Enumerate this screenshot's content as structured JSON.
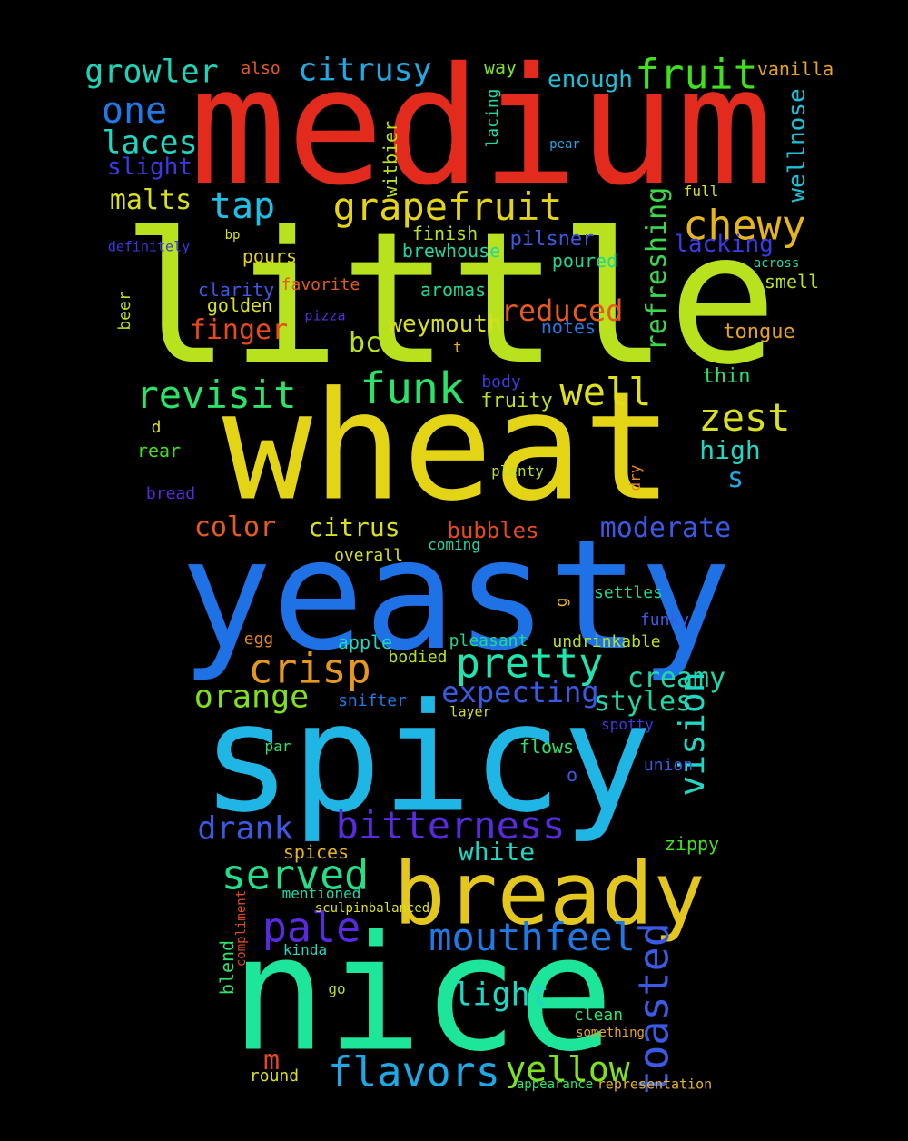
{
  "words": [
    {
      "text": "medium",
      "color": "#e22b1c"
    },
    {
      "text": "little",
      "color": "#b8e11e"
    },
    {
      "text": "wheat",
      "color": "#e3d416"
    },
    {
      "text": "yeasty",
      "color": "#1e72e6"
    },
    {
      "text": "spicy",
      "color": "#1fb6e6"
    },
    {
      "text": "nice",
      "color": "#1de69a"
    },
    {
      "text": "bready",
      "color": "#e3c61e"
    },
    {
      "text": "grapefruit",
      "color": "#e3d416"
    },
    {
      "text": "fruit",
      "color": "#41e01e"
    },
    {
      "text": "chewy",
      "color": "#e5b51c"
    },
    {
      "text": "funk",
      "color": "#2ce36a"
    },
    {
      "text": "revisit",
      "color": "#2ce36a"
    },
    {
      "text": "well",
      "color": "#dde01a"
    },
    {
      "text": "crisp",
      "color": "#e6981e"
    },
    {
      "text": "pretty",
      "color": "#1de6b0"
    },
    {
      "text": "bitterness",
      "color": "#5a2ae0"
    },
    {
      "text": "served",
      "color": "#22e08a"
    },
    {
      "text": "mouthfeel",
      "color": "#1e7ae6"
    },
    {
      "text": "flavors",
      "color": "#1ea8e6"
    },
    {
      "text": "yellow",
      "color": "#7fe01e"
    },
    {
      "text": "pale",
      "color": "#5a2ae0"
    },
    {
      "text": "growler",
      "color": "#1ed3b8"
    },
    {
      "text": "citrusy",
      "color": "#1eaae6"
    },
    {
      "text": "one",
      "color": "#1e7ae6"
    },
    {
      "text": "tap",
      "color": "#1ec0e6"
    },
    {
      "text": "laces",
      "color": "#1ed8c4"
    },
    {
      "text": "malts",
      "color": "#d8e01e"
    },
    {
      "text": "slight",
      "color": "#3a3ae6"
    },
    {
      "text": "enough",
      "color": "#1ec0d8"
    },
    {
      "text": "also",
      "color": "#e65a1e"
    },
    {
      "text": "way",
      "color": "#7fe01e"
    },
    {
      "text": "vanilla",
      "color": "#e6a31e"
    },
    {
      "text": "wellnose",
      "color": "#1ec0d8"
    },
    {
      "text": "witbier",
      "color": "#b8e11e"
    },
    {
      "text": "lacing",
      "color": "#1ed8a8"
    },
    {
      "text": "pear",
      "color": "#1ea8e6"
    },
    {
      "text": "full",
      "color": "#d8e01e"
    },
    {
      "text": "refreshing",
      "color": "#3ad84a"
    },
    {
      "text": "lacking",
      "color": "#3a3ae6"
    },
    {
      "text": "across",
      "color": "#1ed8a8"
    },
    {
      "text": "smell",
      "color": "#b8e11e"
    },
    {
      "text": "bp",
      "color": "#d8e01e"
    },
    {
      "text": "definitely",
      "color": "#3a3ae6"
    },
    {
      "text": "finish",
      "color": "#b8e11e"
    },
    {
      "text": "pilsner",
      "color": "#3a5ae6"
    },
    {
      "text": "pours",
      "color": "#e3d416"
    },
    {
      "text": "brewhouse",
      "color": "#1ed8a8"
    },
    {
      "text": "poured",
      "color": "#1ed890"
    },
    {
      "text": "beer",
      "color": "#b8e11e"
    },
    {
      "text": "clarity",
      "color": "#3a5ae6"
    },
    {
      "text": "favorite",
      "color": "#e65a1e"
    },
    {
      "text": "aromas",
      "color": "#1ed890"
    },
    {
      "text": "golden",
      "color": "#d8e01e"
    },
    {
      "text": "reduced",
      "color": "#e65a1e"
    },
    {
      "text": "pizza",
      "color": "#5a2ae0"
    },
    {
      "text": "weymouth",
      "color": "#d8e01e"
    },
    {
      "text": "finger",
      "color": "#e6491e"
    },
    {
      "text": "notes",
      "color": "#1e7ae6"
    },
    {
      "text": "tongue",
      "color": "#e6a31e"
    },
    {
      "text": "bc",
      "color": "#b8e11e"
    },
    {
      "text": "t",
      "color": "#e6b51e"
    },
    {
      "text": "thin",
      "color": "#2ce36a"
    },
    {
      "text": "body",
      "color": "#3a3ae6"
    },
    {
      "text": "fruity",
      "color": "#b8e11e"
    },
    {
      "text": "zest",
      "color": "#d8e01e"
    },
    {
      "text": "d",
      "color": "#d8e01e"
    },
    {
      "text": "high",
      "color": "#1ed8c4"
    },
    {
      "text": "rear",
      "color": "#41e01e"
    },
    {
      "text": "dry",
      "color": "#e6881e"
    },
    {
      "text": "plenty",
      "color": "#b8e11e"
    },
    {
      "text": "s",
      "color": "#1ea8e6"
    },
    {
      "text": "bread",
      "color": "#5a2ae0"
    },
    {
      "text": "color",
      "color": "#e65a1e"
    },
    {
      "text": "citrus",
      "color": "#d8e01e"
    },
    {
      "text": "bubbles",
      "color": "#e6491e"
    },
    {
      "text": "moderate",
      "color": "#3a5ae6"
    },
    {
      "text": "overall",
      "color": "#d8e01e"
    },
    {
      "text": "g",
      "color": "#e6b51e"
    },
    {
      "text": "settles",
      "color": "#1ed890"
    },
    {
      "text": "funky",
      "color": "#3a5ae6"
    },
    {
      "text": "egg",
      "color": "#e6881e"
    },
    {
      "text": "apple",
      "color": "#1ed8c4"
    },
    {
      "text": "pleasant",
      "color": "#1ed890"
    },
    {
      "text": "undrinkable",
      "color": "#b8e11e"
    },
    {
      "text": "bodied",
      "color": "#b8e11e"
    },
    {
      "text": "creamy",
      "color": "#1ed8a8"
    },
    {
      "text": "orange",
      "color": "#7fe01e"
    },
    {
      "text": "snifter",
      "color": "#1e7ae6"
    },
    {
      "text": "expecting",
      "color": "#3a5ae6"
    },
    {
      "text": "styles",
      "color": "#1ed8a8"
    },
    {
      "text": "vision",
      "color": "#1ed8c4"
    },
    {
      "text": "layer",
      "color": "#d8e01e"
    },
    {
      "text": "spotty",
      "color": "#3a3ae6"
    },
    {
      "text": "par",
      "color": "#2ce36a"
    },
    {
      "text": "flows",
      "color": "#2ce36a"
    },
    {
      "text": "union",
      "color": "#3a5ae6"
    },
    {
      "text": "o",
      "color": "#3a5ae6"
    },
    {
      "text": "drank",
      "color": "#3a5ae6"
    },
    {
      "text": "zippy",
      "color": "#41e01e"
    },
    {
      "text": "spices",
      "color": "#e6b51e"
    },
    {
      "text": "white",
      "color": "#1ed8c4"
    },
    {
      "text": "mentioned",
      "color": "#1ed8a8"
    },
    {
      "text": "sculpinbalanced",
      "color": "#d8e01e"
    },
    {
      "text": "blend",
      "color": "#2ce36a"
    },
    {
      "text": "compliment",
      "color": "#e6491e"
    },
    {
      "text": "kinda",
      "color": "#1ed8c4"
    },
    {
      "text": "toasted",
      "color": "#3a5ae6"
    },
    {
      "text": "light",
      "color": "#1ed8c4"
    },
    {
      "text": "go",
      "color": "#b8e11e"
    },
    {
      "text": "clean",
      "color": "#2ce36a"
    },
    {
      "text": "something",
      "color": "#e6a31e"
    },
    {
      "text": "m",
      "color": "#e6491e"
    },
    {
      "text": "round",
      "color": "#d8e01e"
    },
    {
      "text": "appearance",
      "color": "#2ce36a"
    },
    {
      "text": "representation",
      "color": "#e6b51e"
    },
    {
      "text": "coming",
      "color": "#1ed8a8"
    }
  ]
}
